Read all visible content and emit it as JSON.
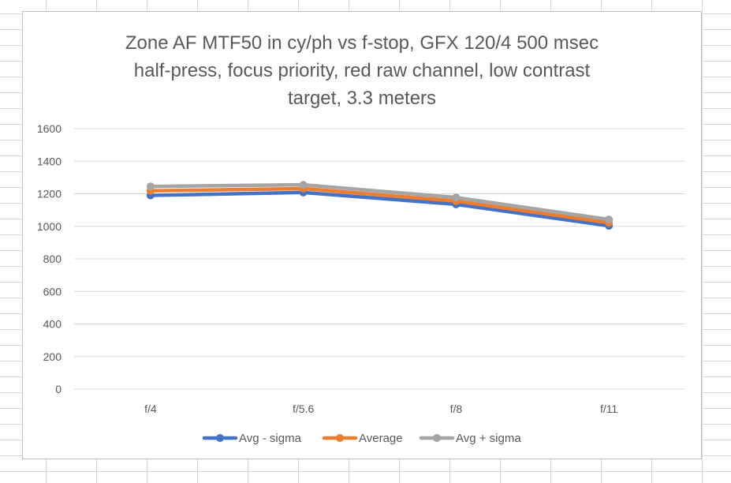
{
  "chart_data": {
    "type": "line",
    "title_lines": [
      "Zone AF MTF50 in cy/ph vs f-stop, GFX 120/4 500 msec",
      "half-press, focus priority, red raw channel, low contrast",
      "target, 3.3 meters"
    ],
    "categories": [
      "f/4",
      "f/5.6",
      "f/8",
      "f/11"
    ],
    "ylim": [
      0,
      1600
    ],
    "yticks": [
      0,
      200,
      400,
      600,
      800,
      1000,
      1200,
      1400,
      1600
    ],
    "grid": true,
    "legend_position": "bottom",
    "series": [
      {
        "name": "Avg - sigma",
        "color": "#4472C4",
        "values": [
          1190,
          1208,
          1135,
          1003
        ]
      },
      {
        "name": "Average",
        "color": "#ED7D31",
        "values": [
          1218,
          1232,
          1155,
          1022
        ]
      },
      {
        "name": "Avg + sigma",
        "color": "#A5A5A5",
        "values": [
          1245,
          1255,
          1177,
          1042
        ]
      }
    ]
  }
}
